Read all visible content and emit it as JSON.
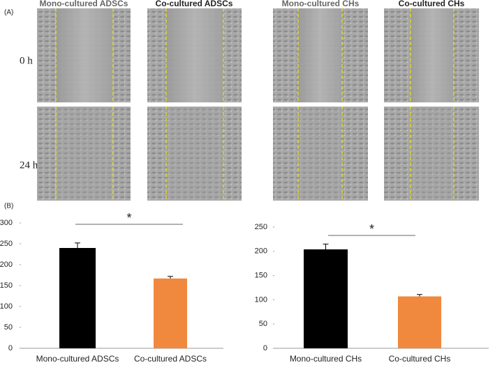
{
  "panel_a": {
    "label": "(A)",
    "columns": [
      "Mono-cultured ADSCs",
      "Co-cultured ADSCs",
      "Mono-cultured CHs",
      "Co-cultured CHs"
    ],
    "rows": [
      "0 h",
      "24 h"
    ]
  },
  "panel_b": {
    "label": "(B)"
  },
  "chart_data": [
    {
      "type": "bar",
      "categories": [
        "Mono-cultured ADSCs",
        "Co-cultured ADSCs"
      ],
      "values": [
        240,
        167
      ],
      "errors": [
        12,
        5
      ],
      "colors": [
        "#000000",
        "#f0883e"
      ],
      "ylim": [
        0,
        300
      ],
      "yticks": [
        0,
        50,
        100,
        150,
        200,
        250,
        300
      ],
      "annotation": "*"
    },
    {
      "type": "bar",
      "categories": [
        "Mono-cultured CHs",
        "Co-cultured CHs"
      ],
      "values": [
        204,
        107
      ],
      "errors": [
        11,
        4
      ],
      "colors": [
        "#000000",
        "#f0883e"
      ],
      "ylim": [
        0,
        250
      ],
      "yticks": [
        0,
        50,
        100,
        150,
        200,
        250
      ],
      "annotation": "*"
    }
  ]
}
